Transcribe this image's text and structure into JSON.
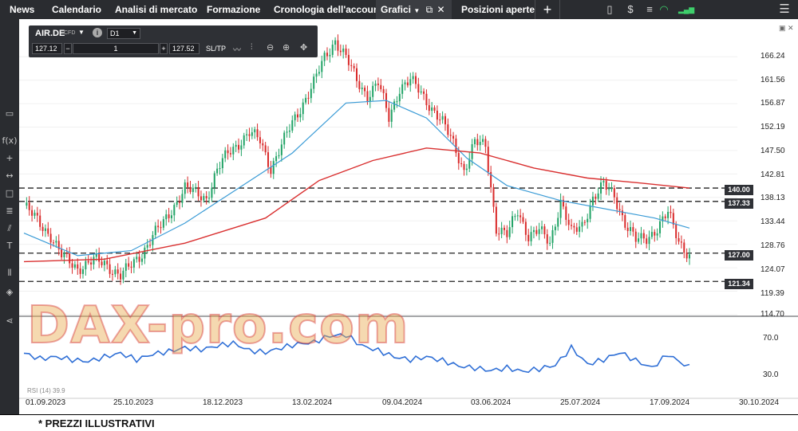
{
  "nav": {
    "items": [
      "News",
      "Calendario",
      "Analisi di mercato",
      "Formazione",
      "Cronologia dell'account"
    ],
    "active_tab": "Grafici",
    "tab2": "Posizioni aperte",
    "add": "+"
  },
  "toolbar": {
    "symbol": "AIR.DE",
    "symbol_type": "CFD",
    "timeframe": "D1",
    "bid": "127.12",
    "qty": "1",
    "ask": "127.52",
    "sltp": "SL/TP",
    "minus": "−",
    "plus": "+"
  },
  "chart_data": {
    "type": "candlestick",
    "symbol": "AIR.DE",
    "timeframe": "D1",
    "y_ticks": [
      "166.24",
      "161.56",
      "156.87",
      "152.19",
      "147.50",
      "142.81",
      "138.13",
      "133.44",
      "128.76",
      "124.07",
      "119.39",
      "114.70"
    ],
    "x_ticks": [
      "01.09.2023",
      "25.10.2023",
      "18.12.2023",
      "13.02.2024",
      "09.04.2024",
      "03.06.2024",
      "25.07.2024",
      "17.09.2024",
      "30.10.2024"
    ],
    "ylim": [
      114.7,
      166.24
    ],
    "horizontal_levels": [
      {
        "label": "140.00",
        "value": 140.0
      },
      {
        "label": "137.33",
        "value": 137.33
      },
      {
        "label": "127.00",
        "value": 127.0
      },
      {
        "label": "121.34",
        "value": 121.34
      }
    ],
    "close_series": [
      [
        0,
        136.5
      ],
      [
        5,
        133.5
      ],
      [
        10,
        130.5
      ],
      [
        14,
        126.5
      ],
      [
        20,
        124.0
      ],
      [
        26,
        125.5
      ],
      [
        30,
        125.0
      ],
      [
        36,
        122.5
      ],
      [
        40,
        124.5
      ],
      [
        44,
        127.0
      ],
      [
        48,
        130.5
      ],
      [
        52,
        133.0
      ],
      [
        56,
        136.5
      ],
      [
        60,
        140.0
      ],
      [
        64,
        139.0
      ],
      [
        68,
        138.0
      ],
      [
        72,
        143.5
      ],
      [
        76,
        147.0
      ],
      [
        80,
        149.0
      ],
      [
        84,
        151.0
      ],
      [
        88,
        149.5
      ],
      [
        92,
        144.0
      ],
      [
        96,
        148.5
      ],
      [
        100,
        153.0
      ],
      [
        104,
        157.0
      ],
      [
        108,
        161.0
      ],
      [
        112,
        166.0
      ],
      [
        116,
        169.5
      ],
      [
        120,
        166.0
      ],
      [
        124,
        161.5
      ],
      [
        128,
        158.5
      ],
      [
        132,
        161.0
      ],
      [
        136,
        154.0
      ],
      [
        140,
        160.0
      ],
      [
        144,
        161.5
      ],
      [
        148,
        159.0
      ],
      [
        152,
        156.0
      ],
      [
        156,
        153.0
      ],
      [
        160,
        149.0
      ],
      [
        164,
        143.5
      ],
      [
        168,
        149.0
      ],
      [
        172,
        148.5
      ],
      [
        176,
        132.0
      ],
      [
        180,
        130.5
      ],
      [
        184,
        135.5
      ],
      [
        188,
        130.5
      ],
      [
        192,
        131.5
      ],
      [
        196,
        129.0
      ],
      [
        200,
        137.5
      ],
      [
        204,
        131.0
      ],
      [
        208,
        132.5
      ],
      [
        212,
        138.0
      ],
      [
        216,
        140.5
      ],
      [
        220,
        138.5
      ],
      [
        224,
        133.0
      ],
      [
        228,
        129.5
      ],
      [
        232,
        130.0
      ],
      [
        236,
        132.0
      ],
      [
        240,
        135.0
      ],
      [
        244,
        129.5
      ],
      [
        248,
        126.5
      ]
    ],
    "moving_averages": [
      {
        "name": "blue",
        "color": "#3a9bd6",
        "points": [
          [
            0,
            131.0
          ],
          [
            20,
            126.5
          ],
          [
            40,
            127.5
          ],
          [
            60,
            133.0
          ],
          [
            80,
            140.0
          ],
          [
            100,
            147.0
          ],
          [
            120,
            157.0
          ],
          [
            135,
            157.5
          ],
          [
            150,
            154.0
          ],
          [
            165,
            146.0
          ],
          [
            180,
            140.5
          ],
          [
            200,
            137.5
          ],
          [
            220,
            135.5
          ],
          [
            235,
            134.0
          ],
          [
            248,
            132.0
          ]
        ]
      },
      {
        "name": "red",
        "color": "#d93030",
        "points": [
          [
            0,
            125.3
          ],
          [
            30,
            125.8
          ],
          [
            60,
            129.0
          ],
          [
            90,
            134.0
          ],
          [
            110,
            141.5
          ],
          [
            130,
            145.5
          ],
          [
            150,
            148.0
          ],
          [
            170,
            147.0
          ],
          [
            190,
            144.0
          ],
          [
            210,
            142.0
          ],
          [
            230,
            141.0
          ],
          [
            248,
            140.0
          ]
        ]
      }
    ],
    "rsi": {
      "label": "RSI (14) 39.9",
      "ticks": [
        "70.0",
        "30.0"
      ],
      "color": "#2f6fd6",
      "values": [
        [
          0,
          54
        ],
        [
          6,
          48
        ],
        [
          12,
          50
        ],
        [
          18,
          47
        ],
        [
          24,
          45
        ],
        [
          30,
          50
        ],
        [
          36,
          54
        ],
        [
          42,
          47
        ],
        [
          48,
          53
        ],
        [
          54,
          56
        ],
        [
          60,
          60
        ],
        [
          66,
          58
        ],
        [
          72,
          62
        ],
        [
          78,
          65
        ],
        [
          84,
          57
        ],
        [
          90,
          55
        ],
        [
          96,
          60
        ],
        [
          102,
          64
        ],
        [
          108,
          66
        ],
        [
          114,
          73
        ],
        [
          120,
          74
        ],
        [
          126,
          62
        ],
        [
          132,
          57
        ],
        [
          138,
          50
        ],
        [
          144,
          47
        ],
        [
          150,
          50
        ],
        [
          156,
          46
        ],
        [
          162,
          40
        ],
        [
          168,
          38
        ],
        [
          174,
          35
        ],
        [
          180,
          38
        ],
        [
          186,
          34
        ],
        [
          192,
          37
        ],
        [
          198,
          41
        ],
        [
          204,
          60
        ],
        [
          210,
          42
        ],
        [
          216,
          47
        ],
        [
          222,
          55
        ],
        [
          228,
          46
        ],
        [
          234,
          38
        ],
        [
          240,
          53
        ],
        [
          244,
          45
        ],
        [
          248,
          39
        ]
      ]
    }
  },
  "watermark": "DAX-pro.com",
  "footer": {
    "note": "* PREZZI ILLUSTRATIVI"
  }
}
